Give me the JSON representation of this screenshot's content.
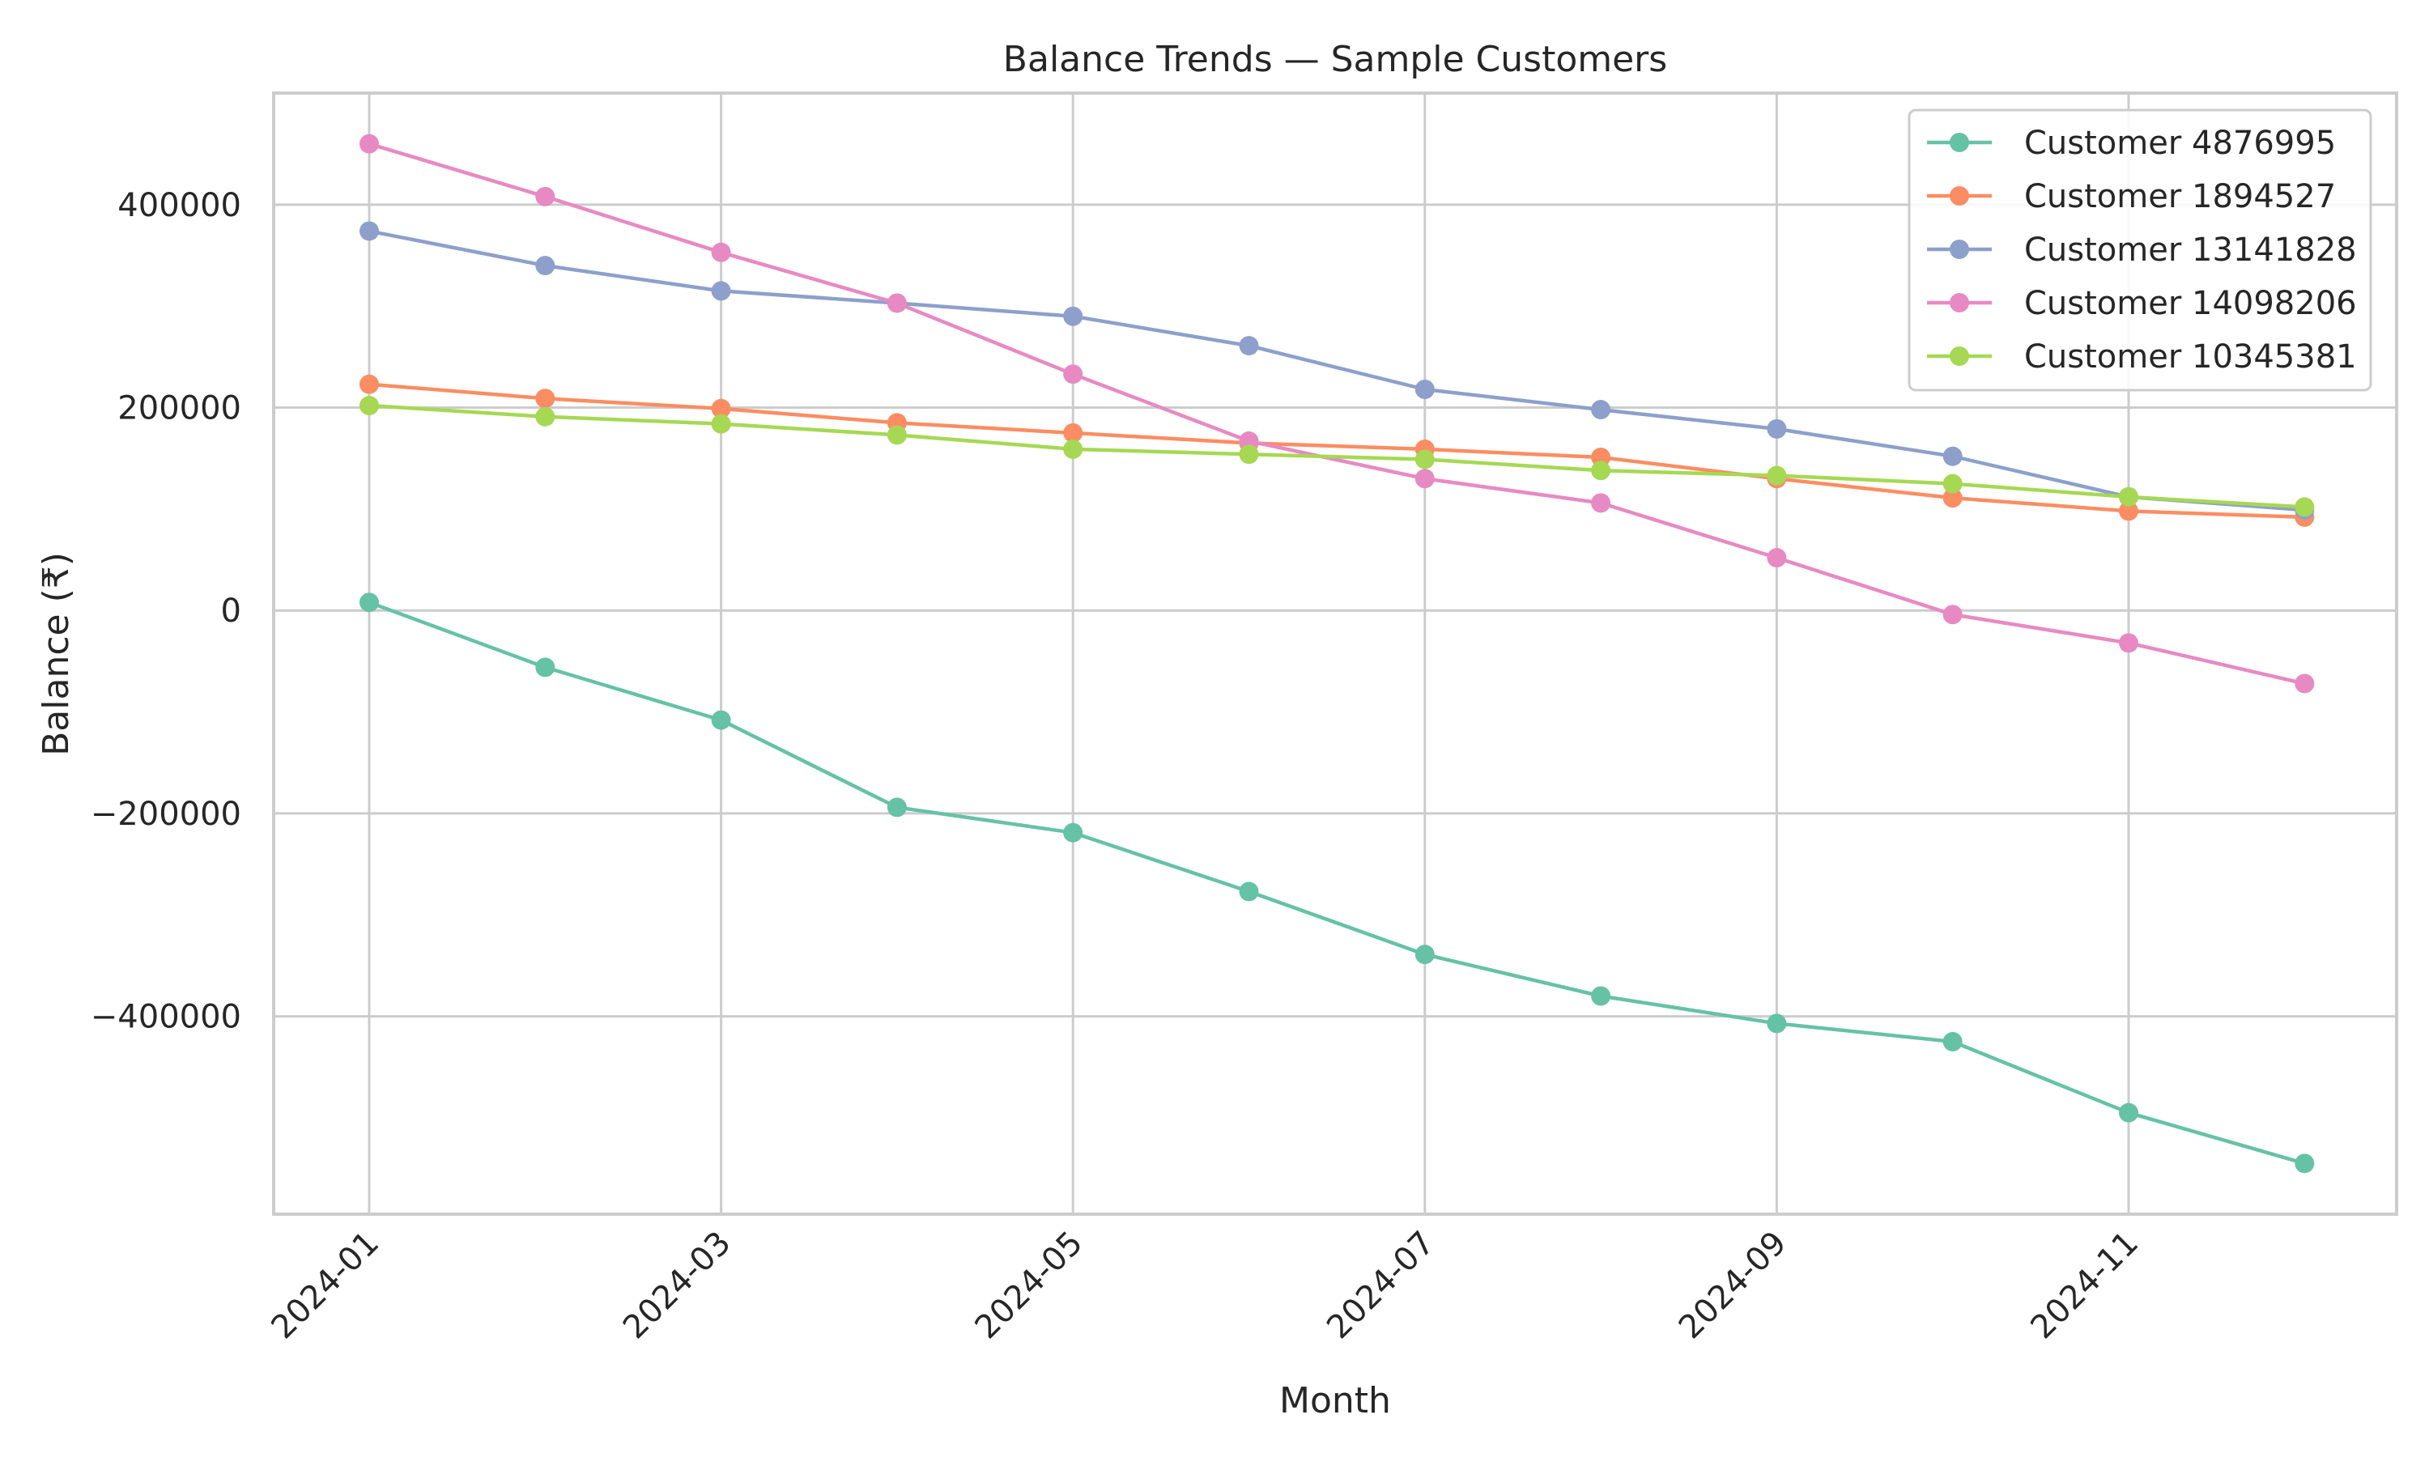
{
  "chart_data": {
    "type": "line",
    "title": "Balance Trends — Sample Customers",
    "xlabel": "Month",
    "ylabel": "Balance (₹)",
    "x": [
      "2024-01",
      "2024-02",
      "2024-03",
      "2024-04",
      "2024-05",
      "2024-06",
      "2024-07",
      "2024-08",
      "2024-09",
      "2024-10",
      "2024-11",
      "2024-12"
    ],
    "x_tick_labels": [
      "2024-01",
      "2024-03",
      "2024-05",
      "2024-07",
      "2024-09",
      "2024-11"
    ],
    "y_ticks": [
      -400000,
      -200000,
      0,
      200000,
      400000
    ],
    "y_tick_labels": [
      "−400000",
      "−200000",
      "0",
      "200000",
      "400000"
    ],
    "ylim": [
      -595000,
      510000
    ],
    "grid": true,
    "legend_position": "top-right",
    "series": [
      {
        "name": "Customer 4876995",
        "color": "#66c2a5",
        "values": [
          8000,
          -56000,
          -108000,
          -194000,
          -219000,
          -277000,
          -339000,
          -380000,
          -407000,
          -425000,
          -495000,
          -545000
        ]
      },
      {
        "name": "Customer 1894527",
        "color": "#fc8d62",
        "values": [
          223000,
          209000,
          199000,
          185000,
          175000,
          165000,
          159000,
          151000,
          130000,
          111000,
          98000,
          92000
        ]
      },
      {
        "name": "Customer 13141828",
        "color": "#8da0cb",
        "values": [
          374000,
          340000,
          315000,
          303000,
          290000,
          261000,
          218000,
          198000,
          179000,
          152000,
          112000,
          99000
        ]
      },
      {
        "name": "Customer 14098206",
        "color": "#e78ac3",
        "values": [
          460000,
          408000,
          353000,
          303000,
          233000,
          167000,
          130000,
          106000,
          52000,
          -4000,
          -32000,
          -72000
        ]
      },
      {
        "name": "Customer 10345381",
        "color": "#a6d854",
        "values": [
          202000,
          191000,
          184000,
          173000,
          159000,
          154000,
          149000,
          138000,
          133000,
          125000,
          112000,
          102000
        ]
      }
    ]
  }
}
